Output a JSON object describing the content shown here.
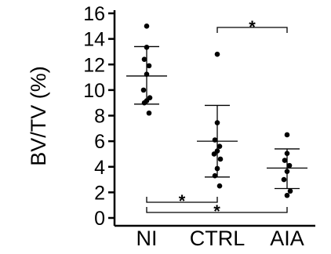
{
  "chart_data": {
    "type": "scatter",
    "title": "",
    "xlabel": "",
    "ylabel": "BV/TV (%)",
    "ylim": [
      0,
      16
    ],
    "yticks": [
      0,
      2,
      4,
      6,
      8,
      10,
      12,
      14,
      16
    ],
    "grid": false,
    "categories": [
      "NI",
      "CTRL",
      "AIA"
    ],
    "groups": [
      {
        "category": "NI",
        "points": [
          15.0,
          13.4,
          12.4,
          11.9,
          11.2,
          10.0,
          9.4,
          9.2,
          9.0,
          8.2
        ],
        "mean": 11.1,
        "error_upper": 13.4,
        "error_lower": 8.9
      },
      {
        "category": "CTRL",
        "points": [
          12.8,
          7.5,
          6.1,
          5.6,
          5.2,
          5.0,
          4.6,
          3.9,
          3.3,
          2.5
        ],
        "mean": 6.0,
        "error_upper": 8.8,
        "error_lower": 3.2
      },
      {
        "category": "AIA",
        "points": [
          6.5,
          5.1,
          4.5,
          4.1,
          3.6,
          3.0,
          2.1,
          1.8
        ],
        "mean": 3.9,
        "error_upper": 5.4,
        "error_lower": 2.3
      }
    ],
    "significance": [
      {
        "from": "CTRL",
        "to": "AIA",
        "label": "*",
        "position": "top"
      },
      {
        "from": "NI",
        "to": "CTRL",
        "label": "*",
        "position": "bottom"
      },
      {
        "from": "NI",
        "to": "AIA",
        "label": "*",
        "position": "bottom"
      }
    ]
  }
}
